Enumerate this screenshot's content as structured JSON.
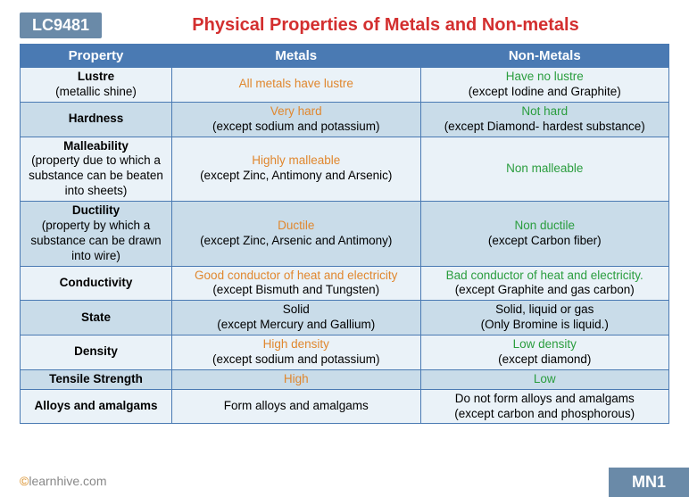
{
  "header": {
    "code": "LC9481",
    "title": "Physical Properties of Metals and Non-metals"
  },
  "columns": [
    "Property",
    "Metals",
    "Non-Metals"
  ],
  "rows": [
    {
      "prop_name": "Lustre",
      "prop_sub": "(metallic shine)",
      "metal_main": "All metals have lustre",
      "metal_sub": "",
      "nonmetal_main": "Have no lustre",
      "nonmetal_sub": "(except Iodine and Graphite)"
    },
    {
      "prop_name": "Hardness",
      "prop_sub": "",
      "metal_main": "Very hard",
      "metal_sub": "(except sodium and potassium)",
      "nonmetal_main": "Not hard",
      "nonmetal_sub": "(except Diamond- hardest substance)"
    },
    {
      "prop_name": "Malleability",
      "prop_sub": "(property due to which a substance can be beaten into sheets)",
      "metal_main": "Highly malleable",
      "metal_sub": "(except Zinc, Antimony and Arsenic)",
      "nonmetal_main": "Non malleable",
      "nonmetal_sub": ""
    },
    {
      "prop_name": "Ductility",
      "prop_sub": "(property by which a substance can be drawn into wire)",
      "metal_main": "Ductile",
      "metal_sub": "(except Zinc, Arsenic and Antimony)",
      "nonmetal_main": "Non ductile",
      "nonmetal_sub": "(except Carbon fiber)"
    },
    {
      "prop_name": "Conductivity",
      "prop_sub": "",
      "metal_main": "Good conductor of heat and electricity",
      "metal_sub": "(except Bismuth and Tungsten)",
      "nonmetal_main": "Bad conductor of heat and electricity.",
      "nonmetal_sub": "(except Graphite and gas carbon)"
    },
    {
      "prop_name": "State",
      "prop_sub": "",
      "metal_main": "Solid",
      "metal_sub": "(except Mercury and Gallium)",
      "nonmetal_main": "Solid, liquid or gas",
      "nonmetal_sub": "(Only Bromine is liquid.)",
      "metal_main_black": true,
      "nonmetal_main_black": true
    },
    {
      "prop_name": "Density",
      "prop_sub": "",
      "metal_main": "High density",
      "metal_sub": "(except sodium and potassium)",
      "nonmetal_main": "Low density",
      "nonmetal_sub": "(except diamond)"
    },
    {
      "prop_name": "Tensile Strength",
      "prop_sub": "",
      "metal_main": "High",
      "metal_sub": "",
      "nonmetal_main": "Low",
      "nonmetal_sub": ""
    },
    {
      "prop_name": "Alloys and amalgams",
      "prop_sub": "",
      "metal_main": "Form alloys and amalgams",
      "metal_sub": "",
      "nonmetal_main": "Do not form alloys and amalgams",
      "nonmetal_sub": "(except carbon and phosphorous)",
      "metal_main_black": true,
      "nonmetal_main_black": true
    }
  ],
  "footer": {
    "brand_accent": "©",
    "brand_text": "learnhive.com",
    "code": "MN1"
  }
}
